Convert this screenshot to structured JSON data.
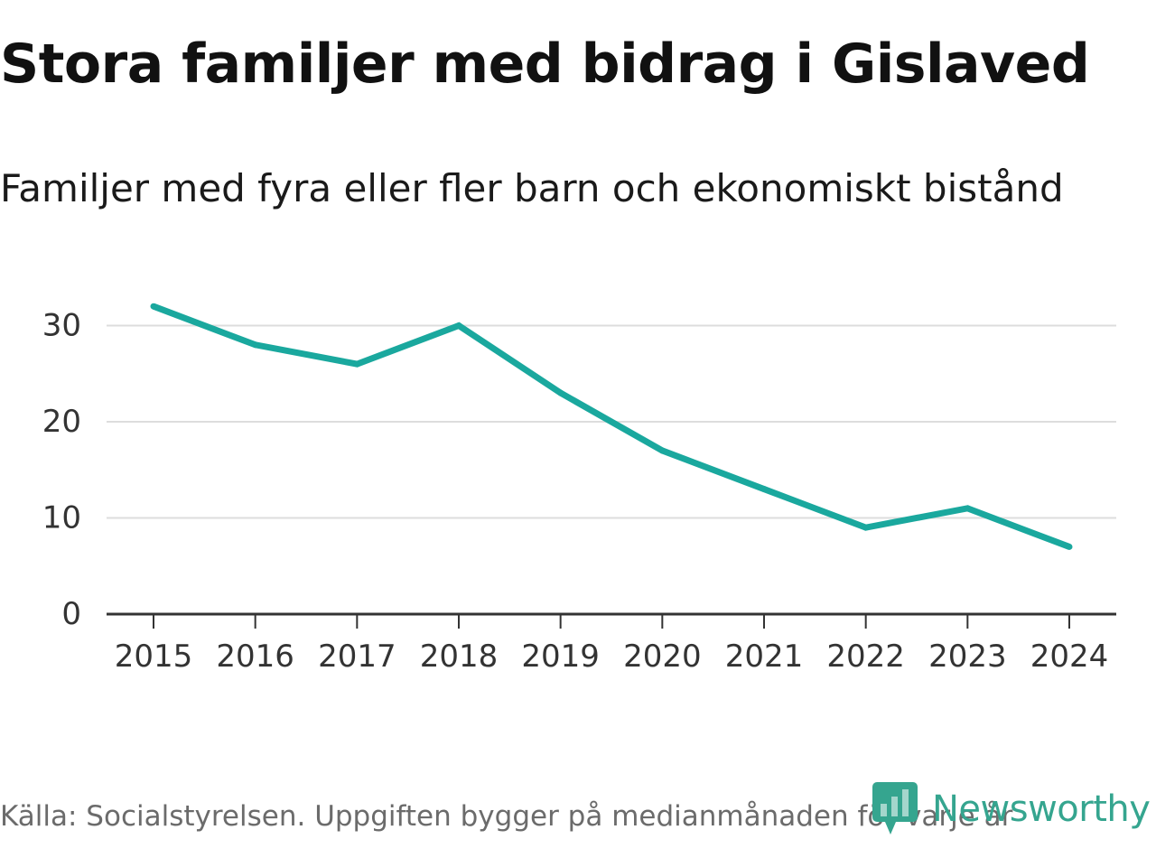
{
  "chart_data": {
    "type": "line",
    "title": "Stora familjer med bidrag i Gislaved",
    "subtitle": "Familjer med fyra eller fler barn och ekonomiskt bistånd",
    "x": [
      "2015",
      "2016",
      "2017",
      "2018",
      "2019",
      "2020",
      "2021",
      "2022",
      "2023",
      "2024"
    ],
    "series": [
      {
        "name": "Familjer med fyra eller fler barn och ekonomiskt bistånd",
        "values": [
          32,
          28,
          26,
          30,
          23,
          17,
          13,
          9,
          11,
          7
        ]
      }
    ],
    "y_ticks": [
      0,
      10,
      20,
      30
    ],
    "ylim": [
      0,
      33
    ],
    "grid": true,
    "line_color": "#1aa89e",
    "grid_color": "#dddddd",
    "axis_color": "#333333"
  },
  "footer": {
    "source": "Källa: Socialstyrelsen. Uppgiften bygger på medianmånaden för varje år"
  },
  "brand": {
    "name": "Newsworthy",
    "icon": "newsworthy-logo-icon",
    "color": "#35a58f"
  }
}
